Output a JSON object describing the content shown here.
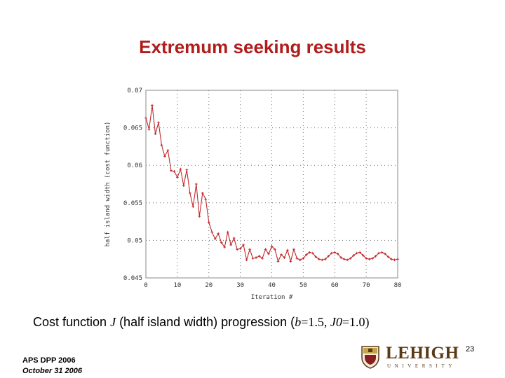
{
  "slide": {
    "title": "Extremum seeking results",
    "caption": {
      "prefix": "Cost function ",
      "J": "J",
      "middle": " (half island width) progression (",
      "b": "b",
      "b_value": "=1.5, ",
      "J0": "J0",
      "J0_value": "=1.0)"
    },
    "footer": {
      "line1": "APS DPP 2006",
      "line2": "October 31 2006"
    },
    "page_number": "23",
    "logo": {
      "word": "LEHIGH",
      "sub": "UNIVERSITY"
    }
  },
  "colors": {
    "title": "#b01c1c",
    "series": "#c0282a",
    "grid": "#666666",
    "logo": "#5a3a16"
  },
  "chart_data": {
    "type": "line",
    "title": "",
    "xlabel": "Iteration #",
    "ylabel": "half island width (cost function)",
    "xlim": [
      0,
      80
    ],
    "ylim": [
      0.045,
      0.07
    ],
    "xticks": [
      "0",
      "10",
      "20",
      "30",
      "40",
      "50",
      "60",
      "70",
      "80"
    ],
    "yticks": [
      "0.045",
      "0.05",
      "0.055",
      "0.06",
      "0.065",
      "0.07"
    ],
    "grid": true,
    "series": [
      {
        "name": "",
        "x": [
          0,
          1,
          2,
          3,
          4,
          5,
          6,
          7,
          8,
          9,
          10,
          11,
          12,
          13,
          14,
          15,
          16,
          17,
          18,
          19,
          20,
          21,
          22,
          23,
          24,
          25,
          26,
          27,
          28,
          29,
          30,
          31,
          32,
          33,
          34,
          35,
          36,
          37,
          38,
          39,
          40,
          41,
          42,
          43,
          44,
          45,
          46,
          47,
          48,
          49,
          50,
          51,
          52,
          53,
          54,
          55,
          56,
          57,
          58,
          59,
          60,
          61,
          62,
          63,
          64,
          65,
          66,
          67,
          68,
          69,
          70,
          71,
          72,
          73,
          74,
          75,
          76,
          77,
          78,
          79,
          80
        ],
        "y": [
          0.0663,
          0.0648,
          0.068,
          0.0642,
          0.0657,
          0.0627,
          0.0612,
          0.062,
          0.0593,
          0.0592,
          0.0584,
          0.0595,
          0.0573,
          0.0594,
          0.0563,
          0.0545,
          0.0575,
          0.0532,
          0.0563,
          0.0555,
          0.0524,
          0.0511,
          0.0502,
          0.0509,
          0.0497,
          0.0491,
          0.0511,
          0.0494,
          0.0503,
          0.0488,
          0.0489,
          0.0494,
          0.0474,
          0.0488,
          0.0476,
          0.0477,
          0.0479,
          0.0476,
          0.0488,
          0.0482,
          0.0492,
          0.0488,
          0.0472,
          0.0481,
          0.0477,
          0.0487,
          0.0472,
          0.0488,
          0.0476,
          0.0474,
          0.0476,
          0.0481,
          0.0484,
          0.0483,
          0.0478,
          0.0475,
          0.0474,
          0.0475,
          0.0479,
          0.0483,
          0.0484,
          0.0482,
          0.0477,
          0.0475,
          0.0474,
          0.0476,
          0.048,
          0.0483,
          0.0484,
          0.048,
          0.0476,
          0.0475,
          0.0476,
          0.0479,
          0.0483,
          0.0484,
          0.0482,
          0.0478,
          0.0475,
          0.0474,
          0.0475
        ]
      }
    ]
  }
}
